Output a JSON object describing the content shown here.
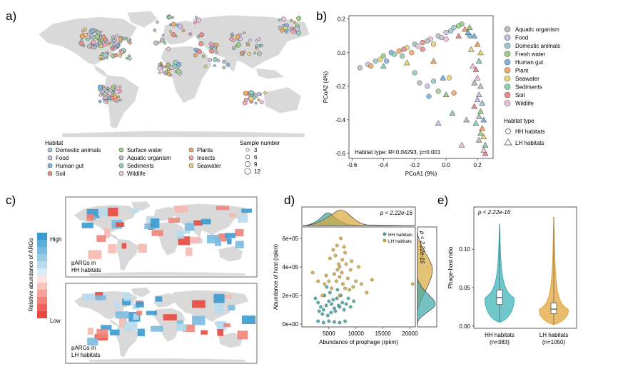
{
  "panels": {
    "a": {
      "label": "a)"
    },
    "b": {
      "label": "b)"
    },
    "c": {
      "label": "c)"
    },
    "d": {
      "label": "d)"
    },
    "e": {
      "label": "e)"
    }
  },
  "legend_a": {
    "habitat_title": "Habitat",
    "habitats": [
      {
        "name": "Domestic animals",
        "color": "#9fc9cf"
      },
      {
        "name": "Food",
        "color": "#c9c2e3"
      },
      {
        "name": "Human gut",
        "color": "#7fb4df"
      },
      {
        "name": "Soil",
        "color": "#e88f8b"
      },
      {
        "name": "Surface water",
        "color": "#9bcf8a"
      },
      {
        "name": "Aquatic organism",
        "color": "#bdbdbd"
      },
      {
        "name": "Sediments",
        "color": "#8fd1b3"
      },
      {
        "name": "Wildlife",
        "color": "#e8c1dd"
      },
      {
        "name": "Plants",
        "color": "#f0a865"
      },
      {
        "name": "Insects",
        "color": "#f3a6b3"
      },
      {
        "name": "Seawater",
        "color": "#e8d67a"
      }
    ],
    "sample_title": "Sample number",
    "sample_sizes": [
      "3",
      "6",
      "9",
      "12"
    ]
  },
  "legend_b": {
    "habitats": [
      {
        "name": "Aquatic organism",
        "color": "#bdbdbd"
      },
      {
        "name": "Food",
        "color": "#c9c2e3"
      },
      {
        "name": "Domestic animals",
        "color": "#9fc9cf"
      },
      {
        "name": "Fresh water",
        "color": "#9bcf8a"
      },
      {
        "name": "Human gut",
        "color": "#7fb4df"
      },
      {
        "name": "Plant",
        "color": "#f0a865"
      },
      {
        "name": "Seawater",
        "color": "#e8d67a"
      },
      {
        "name": "Sediments",
        "color": "#8fd1b3"
      },
      {
        "name": "Soil",
        "color": "#e88f8b"
      },
      {
        "name": "Wildlife",
        "color": "#e8c1dd"
      }
    ],
    "type_title": "Habitat type",
    "types": [
      "HH habitats",
      "LH habitats"
    ]
  },
  "legend_c": {
    "title": "Relative abundance of ARGs",
    "high": "High",
    "low": "Low",
    "map1_caption_line1": "pARGs in",
    "map1_caption_line2": "HH habitats",
    "map2_caption_line1": "pARGs in",
    "map2_caption_line2": "LH habitats"
  },
  "chart_data": [
    {
      "panel": "b",
      "type": "scatter",
      "title": "",
      "xlabel": "PCoA1 (9%)",
      "ylabel": "PCoA2 (4%)",
      "xlim": [
        -0.62,
        0.3
      ],
      "ylim": [
        -0.63,
        0.22
      ],
      "xticks": [
        "-0.6",
        "-0.4",
        "-0.2",
        "0.0",
        "0.2"
      ],
      "yticks": [
        "0.2",
        "0.0",
        "-0.2",
        "-0.4",
        "-0.6"
      ],
      "annotation": "Habitat type: R²:0.04293, p=0.001",
      "series": [
        {
          "name": "HH habitats",
          "marker": "circle",
          "points": [
            [
              -0.55,
              -0.09
            ],
            [
              -0.5,
              -0.07
            ],
            [
              -0.45,
              -0.05
            ],
            [
              -0.4,
              -0.02
            ],
            [
              -0.35,
              0.0
            ],
            [
              -0.3,
              0.01
            ],
            [
              -0.25,
              0.03
            ],
            [
              -0.2,
              0.05
            ],
            [
              -0.15,
              0.06
            ],
            [
              -0.1,
              0.08
            ],
            [
              -0.05,
              0.1
            ],
            [
              0.0,
              0.12
            ],
            [
              0.05,
              0.15
            ],
            [
              0.1,
              0.17
            ],
            [
              0.15,
              0.1
            ],
            [
              -0.48,
              -0.08
            ],
            [
              -0.42,
              -0.04
            ],
            [
              -0.33,
              -0.01
            ],
            [
              -0.27,
              0.02
            ],
            [
              -0.18,
              0.04
            ],
            [
              -0.12,
              0.07
            ],
            [
              -0.03,
              0.09
            ],
            [
              0.03,
              0.13
            ],
            [
              0.08,
              0.16
            ],
            [
              -0.38,
              -0.05
            ],
            [
              -0.22,
              0.0
            ],
            [
              -0.08,
              0.05
            ],
            [
              -0.28,
              -0.02
            ],
            [
              -0.15,
              0.02
            ],
            [
              0.0,
              0.08
            ],
            [
              -0.17,
              -0.18
            ],
            [
              -0.12,
              -0.2
            ],
            [
              -0.08,
              -0.17
            ],
            [
              -0.05,
              -0.23
            ],
            [
              -0.11,
              -0.26
            ],
            [
              0.05,
              -0.24
            ],
            [
              0.02,
              -0.15
            ],
            [
              -0.2,
              -0.12
            ]
          ]
        },
        {
          "name": "LH habitats",
          "marker": "triangle",
          "points": [
            [
              0.15,
              0.15
            ],
            [
              0.18,
              0.1
            ],
            [
              0.2,
              0.05
            ],
            [
              0.22,
              0.0
            ],
            [
              0.21,
              -0.05
            ],
            [
              0.19,
              -0.1
            ],
            [
              0.2,
              -0.15
            ],
            [
              0.22,
              -0.2
            ],
            [
              0.21,
              -0.25
            ],
            [
              0.23,
              -0.3
            ],
            [
              0.22,
              -0.35
            ],
            [
              0.24,
              -0.4
            ],
            [
              0.23,
              -0.45
            ],
            [
              0.24,
              -0.5
            ],
            [
              0.25,
              -0.55
            ],
            [
              0.25,
              -0.6
            ],
            [
              0.17,
              -0.08
            ],
            [
              0.18,
              -0.18
            ],
            [
              0.2,
              -0.28
            ],
            [
              0.21,
              -0.38
            ],
            [
              0.22,
              -0.48
            ],
            [
              0.14,
              0.12
            ],
            [
              0.12,
              0.14
            ],
            [
              0.16,
              0.02
            ],
            [
              0.19,
              -0.42
            ],
            [
              0.18,
              -0.32
            ],
            [
              0.1,
              -0.55
            ],
            [
              0.13,
              -0.4
            ],
            [
              -0.05,
              -0.42
            ],
            [
              0.04,
              -0.36
            ],
            [
              0.0,
              -0.25
            ],
            [
              -0.02,
              -0.15
            ],
            [
              -0.08,
              -0.05
            ],
            [
              -0.25,
              -0.06
            ],
            [
              -0.4,
              -0.08
            ],
            [
              0.08,
              0.1
            ],
            [
              0.24,
              -0.58
            ],
            [
              0.21,
              -0.52
            ]
          ]
        }
      ]
    },
    {
      "panel": "d",
      "type": "scatter",
      "xlabel": "Abundance of prophage (rpkm)",
      "ylabel": "Abundance of host (rpkm)",
      "xlim": [
        0,
        21000
      ],
      "ylim": [
        -20000,
        680000
      ],
      "xticks": [
        "5000",
        "10000",
        "15000",
        "20000"
      ],
      "yticks": [
        "0e+00",
        "2e+05",
        "4e+05",
        "6e+05"
      ],
      "xtick_values": [
        5000,
        10000,
        15000,
        20000
      ],
      "ytick_values": [
        0,
        200000,
        400000,
        600000
      ],
      "p_top": "p < 2.22e-16",
      "p_right": "p < 2.22e-16",
      "series": [
        {
          "name": "HH habitats",
          "color": "#3aa5a5",
          "points": [
            [
              3000,
              150000
            ],
            [
              3500,
              120000
            ],
            [
              4000,
              100000
            ],
            [
              4500,
              130000
            ],
            [
              5000,
              160000
            ],
            [
              5500,
              140000
            ],
            [
              6000,
              110000
            ],
            [
              6500,
              180000
            ],
            [
              7000,
              120000
            ],
            [
              7500,
              150000
            ],
            [
              4200,
              200000
            ],
            [
              5200,
              220000
            ],
            [
              6200,
              90000
            ],
            [
              3800,
              70000
            ],
            [
              4800,
              60000
            ],
            [
              5800,
              170000
            ],
            [
              6800,
              130000
            ],
            [
              7800,
              100000
            ],
            [
              8200,
              140000
            ],
            [
              9000,
              120000
            ],
            [
              2500,
              180000
            ],
            [
              3200,
              90000
            ],
            [
              5400,
              80000
            ],
            [
              6600,
              240000
            ],
            [
              4600,
              260000
            ],
            [
              7200,
              200000
            ],
            [
              8600,
              180000
            ],
            [
              9600,
              160000
            ],
            [
              3000,
              20000
            ],
            [
              4000,
              10000
            ],
            [
              5000,
              20000
            ],
            [
              6000,
              15000
            ],
            [
              7000,
              10000
            ],
            [
              8000,
              20000
            ]
          ]
        },
        {
          "name": "LH habitats",
          "color": "#d7a63a",
          "points": [
            [
              5000,
              300000
            ],
            [
              6000,
              350000
            ],
            [
              7000,
              400000
            ],
            [
              7500,
              450000
            ],
            [
              8000,
              500000
            ],
            [
              6500,
              550000
            ],
            [
              7200,
              600000
            ],
            [
              5500,
              250000
            ],
            [
              8500,
              320000
            ],
            [
              9000,
              380000
            ],
            [
              6800,
              420000
            ],
            [
              7600,
              280000
            ],
            [
              6200,
              480000
            ],
            [
              5800,
              520000
            ],
            [
              8200,
              420000
            ],
            [
              7000,
              330000
            ],
            [
              6600,
              380000
            ],
            [
              9500,
              260000
            ],
            [
              10000,
              300000
            ],
            [
              4500,
              340000
            ],
            [
              5200,
              460000
            ],
            [
              8800,
              240000
            ],
            [
              7400,
              360000
            ],
            [
              7800,
              540000
            ],
            [
              6400,
              300000
            ],
            [
              9200,
              440000
            ],
            [
              11000,
              280000
            ],
            [
              12000,
              220000
            ],
            [
              13000,
              310000
            ],
            [
              10500,
              400000
            ],
            [
              3800,
              200000
            ],
            [
              4200,
              280000
            ],
            [
              20500,
              280000
            ],
            [
              2000,
              360000
            ],
            [
              3000,
              300000
            ],
            [
              7000,
              200000
            ],
            [
              8000,
              250000
            ]
          ]
        }
      ],
      "legend": [
        "HH habitats",
        "LH habitats"
      ]
    },
    {
      "panel": "e",
      "type": "violin",
      "ylabel": "Phage-host ratio",
      "ylim": [
        -0.003,
        0.155
      ],
      "yticks": [
        "0.00",
        "0.05",
        "0.10"
      ],
      "ytick_values": [
        0,
        0.05,
        0.1
      ],
      "categories": [
        "HH habitats\n(n=383)",
        "LH habitats\n(n=1050)"
      ],
      "category_labels": [
        "HH habitats",
        "LH habitats"
      ],
      "category_counts": [
        "(n=383)",
        "(n=1050)"
      ],
      "p_value": "p < 2.22e-16",
      "series": [
        {
          "name": "HH habitats",
          "color": "#3fb3ba",
          "q1": 0.028,
          "median": 0.037,
          "q3": 0.047,
          "min": 0.005,
          "max": 0.133
        },
        {
          "name": "LH habitats",
          "color": "#e0a53c",
          "q1": 0.016,
          "median": 0.022,
          "q3": 0.03,
          "min": 0.002,
          "max": 0.142
        }
      ]
    }
  ]
}
